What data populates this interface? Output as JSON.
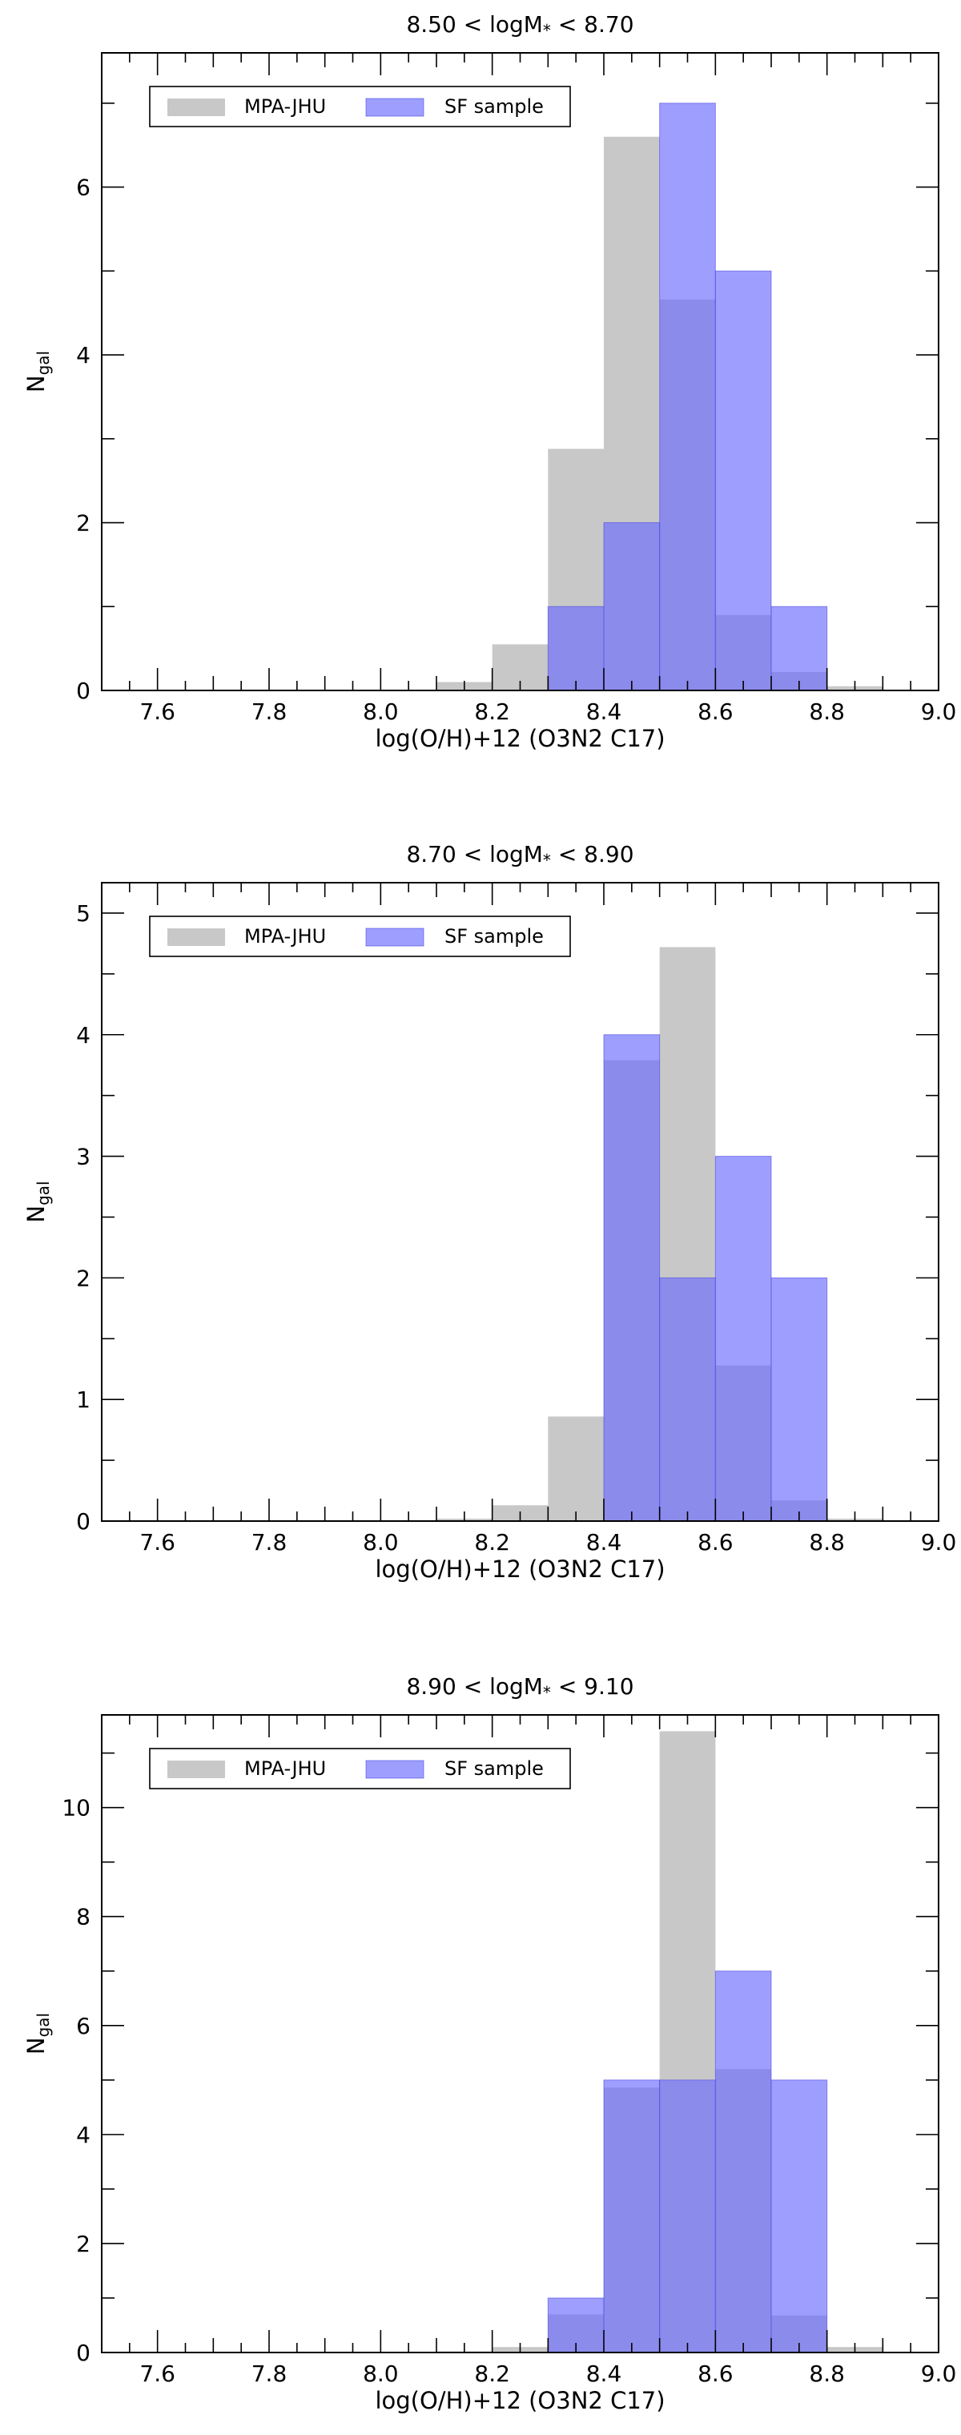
{
  "chart_data": [
    {
      "type": "bar",
      "title": "8.50 < logM",
      "title_sub": "*",
      "title_tail": " < 8.70",
      "xlabel": "log(O/H)+12 (O3N2 C17)",
      "ylabel": "N",
      "ylabel_sub": "gal",
      "xlim": [
        7.5,
        9.0
      ],
      "ylim": [
        0,
        7.6
      ],
      "xticks": [
        7.6,
        7.8,
        8.0,
        8.2,
        8.4,
        8.6,
        8.8,
        9.0
      ],
      "yticks": [
        0,
        2,
        4,
        6
      ],
      "bin_edges": [
        8.1,
        8.2,
        8.3,
        8.4,
        8.5,
        8.6,
        8.7,
        8.8,
        8.9
      ],
      "series": [
        {
          "name": "MPA-JHU",
          "values": [
            0.1,
            0.55,
            2.88,
            6.6,
            4.66,
            0.9,
            0.22,
            0.05
          ]
        },
        {
          "name": "SF sample",
          "values": [
            0,
            0,
            1,
            2,
            7,
            5,
            1,
            0
          ]
        }
      ],
      "legend": "top-left",
      "grid": false
    },
    {
      "type": "bar",
      "title": "8.70 < logM",
      "title_sub": "*",
      "title_tail": " < 8.90",
      "xlabel": "log(O/H)+12 (O3N2 C17)",
      "ylabel": "N",
      "ylabel_sub": "gal",
      "xlim": [
        7.5,
        9.0
      ],
      "ylim": [
        0,
        5.25
      ],
      "xticks": [
        7.6,
        7.8,
        8.0,
        8.2,
        8.4,
        8.6,
        8.8,
        9.0
      ],
      "yticks": [
        0,
        1,
        2,
        3,
        4,
        5
      ],
      "bin_edges": [
        8.1,
        8.2,
        8.3,
        8.4,
        8.5,
        8.6,
        8.7,
        8.8,
        8.9
      ],
      "series": [
        {
          "name": "MPA-JHU",
          "values": [
            0.02,
            0.13,
            0.86,
            3.79,
            4.72,
            1.28,
            0.17,
            0.02
          ]
        },
        {
          "name": "SF sample",
          "values": [
            0,
            0,
            0,
            4,
            2,
            3,
            2,
            0
          ]
        }
      ],
      "legend": "top-left",
      "grid": false
    },
    {
      "type": "bar",
      "title": "8.90 < logM",
      "title_sub": "*",
      "title_tail": " < 9.10",
      "xlabel": "log(O/H)+12 (O3N2 C17)",
      "ylabel": "N",
      "ylabel_sub": "gal",
      "xlim": [
        7.5,
        9.0
      ],
      "ylim": [
        0,
        11.7
      ],
      "xticks": [
        7.6,
        7.8,
        8.0,
        8.2,
        8.4,
        8.6,
        8.8,
        9.0
      ],
      "yticks": [
        0,
        2,
        4,
        6,
        8,
        10
      ],
      "bin_edges": [
        8.1,
        8.2,
        8.3,
        8.4,
        8.5,
        8.6,
        8.7,
        8.8,
        8.9
      ],
      "series": [
        {
          "name": "MPA-JHU",
          "values": [
            0.02,
            0.1,
            0.7,
            4.86,
            11.4,
            5.2,
            0.68,
            0.1
          ]
        },
        {
          "name": "SF sample",
          "values": [
            0,
            0,
            1,
            5,
            5,
            7,
            5,
            0
          ]
        }
      ],
      "legend": "top-left",
      "grid": false
    }
  ],
  "colors": {
    "mpa": "#b0b0b0",
    "sf": "#6a6aff",
    "axis": "#000000"
  }
}
